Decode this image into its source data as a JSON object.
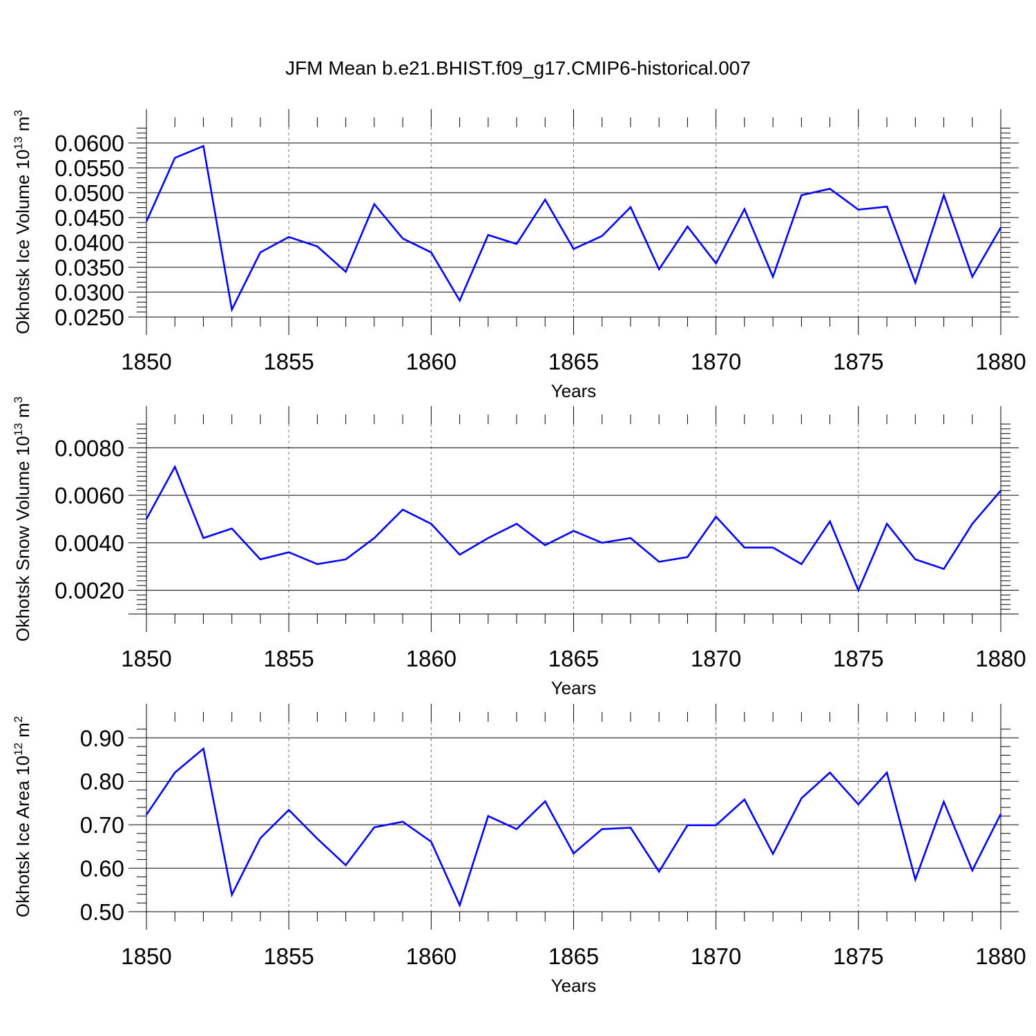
{
  "title": "JFM Mean b.e21.BHIST.f09_g17.CMIP6-historical.007",
  "colors": {
    "series": "#0000ff",
    "grid": "#777777",
    "axis": "#000000"
  },
  "chart_data": [
    {
      "type": "line",
      "ylabel": "Okhotsk Ice Volume",
      "ylabel_unit_base": "10",
      "ylabel_unit_exp": "13",
      "ylabel_unit_name": " m",
      "ylabel_unit_name_exp": "3",
      "xlabel": "Years",
      "xlim": [
        1850,
        1880
      ],
      "ylim": [
        0.025,
        0.0632
      ],
      "xticks": [
        1850,
        1855,
        1860,
        1865,
        1870,
        1875,
        1880
      ],
      "yticks": [
        0.025,
        0.03,
        0.035,
        0.04,
        0.045,
        0.05,
        0.055,
        0.06
      ],
      "ytick_labels": [
        "0.0250",
        "0.0300",
        "0.0350",
        "0.0400",
        "0.0450",
        "0.0500",
        "0.0550",
        "0.0600"
      ],
      "grid": "dashed vertical at major x ticks",
      "x": [
        1850,
        1851,
        1852,
        1853,
        1854,
        1855,
        1856,
        1857,
        1858,
        1859,
        1860,
        1861,
        1862,
        1863,
        1864,
        1865,
        1866,
        1867,
        1868,
        1869,
        1870,
        1871,
        1872,
        1873,
        1874,
        1875,
        1876,
        1877,
        1878,
        1879,
        1880
      ],
      "y": [
        0.0442,
        0.057,
        0.0594,
        0.0265,
        0.038,
        0.0411,
        0.0392,
        0.0341,
        0.0477,
        0.0408,
        0.038,
        0.0283,
        0.0415,
        0.0397,
        0.0486,
        0.0387,
        0.0413,
        0.0471,
        0.0346,
        0.0432,
        0.0358,
        0.0467,
        0.0331,
        0.0495,
        0.0508,
        0.0466,
        0.0472,
        0.0319,
        0.0495,
        0.0331,
        0.043
      ]
    },
    {
      "type": "line",
      "ylabel": "Okhotsk Snow Volume",
      "ylabel_unit_base": "10",
      "ylabel_unit_exp": "13",
      "ylabel_unit_name": " m",
      "ylabel_unit_name_exp": "3",
      "xlabel": "Years",
      "xlim": [
        1850,
        1880
      ],
      "ylim": [
        0.001,
        0.009
      ],
      "xticks": [
        1850,
        1855,
        1860,
        1865,
        1870,
        1875,
        1880
      ],
      "yticks": [
        0.002,
        0.004,
        0.006,
        0.008
      ],
      "ytick_labels": [
        "0.0020",
        "0.0040",
        "0.0060",
        "0.0080"
      ],
      "grid": "dashed vertical at major x ticks",
      "x": [
        1850,
        1851,
        1852,
        1853,
        1854,
        1855,
        1856,
        1857,
        1858,
        1859,
        1860,
        1861,
        1862,
        1863,
        1864,
        1865,
        1866,
        1867,
        1868,
        1869,
        1870,
        1871,
        1872,
        1873,
        1874,
        1875,
        1876,
        1877,
        1878,
        1879,
        1880
      ],
      "y": [
        0.005,
        0.0072,
        0.0042,
        0.0046,
        0.0033,
        0.0036,
        0.0031,
        0.0033,
        0.0042,
        0.0054,
        0.0048,
        0.0035,
        0.0042,
        0.0048,
        0.0039,
        0.0045,
        0.004,
        0.0042,
        0.0032,
        0.0034,
        0.0051,
        0.0038,
        0.0038,
        0.0031,
        0.0049,
        0.002,
        0.0048,
        0.0033,
        0.0029,
        0.0048,
        0.0062
      ]
    },
    {
      "type": "line",
      "ylabel": "Okhotsk Ice Area",
      "ylabel_unit_base": "10",
      "ylabel_unit_exp": "12",
      "ylabel_unit_name": " m",
      "ylabel_unit_name_exp": "2",
      "xlabel": "Years",
      "xlim": [
        1850,
        1880
      ],
      "ylim": [
        0.5,
        0.937
      ],
      "xticks": [
        1850,
        1855,
        1860,
        1865,
        1870,
        1875,
        1880
      ],
      "yticks": [
        0.5,
        0.6,
        0.7,
        0.8,
        0.9
      ],
      "ytick_labels": [
        "0.50",
        "0.60",
        "0.70",
        "0.80",
        "0.90"
      ],
      "grid": "dashed vertical at major x ticks",
      "x": [
        1850,
        1851,
        1852,
        1853,
        1854,
        1855,
        1856,
        1857,
        1858,
        1859,
        1860,
        1861,
        1862,
        1863,
        1864,
        1865,
        1866,
        1867,
        1868,
        1869,
        1870,
        1871,
        1872,
        1873,
        1874,
        1875,
        1876,
        1877,
        1878,
        1879,
        1880
      ],
      "y": [
        0.723,
        0.82,
        0.875,
        0.539,
        0.669,
        0.734,
        0.668,
        0.607,
        0.694,
        0.707,
        0.661,
        0.515,
        0.72,
        0.69,
        0.754,
        0.634,
        0.69,
        0.693,
        0.592,
        0.699,
        0.699,
        0.758,
        0.633,
        0.761,
        0.82,
        0.747,
        0.82,
        0.574,
        0.753,
        0.595,
        0.725
      ]
    }
  ]
}
